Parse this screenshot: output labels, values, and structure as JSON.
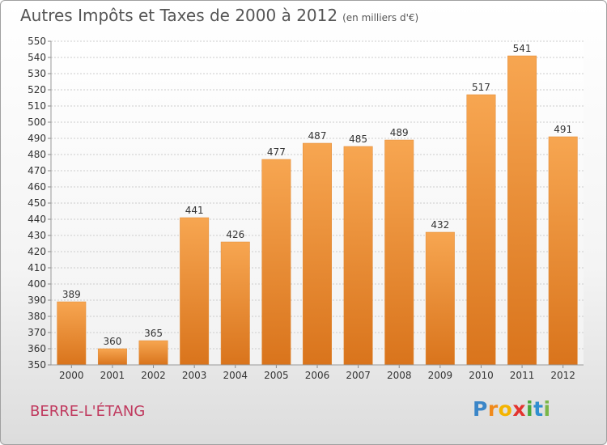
{
  "header": {
    "title": "Autres Impôts et Taxes de 2000 à 2012",
    "subtitle": "(en milliers d'€)"
  },
  "footer": {
    "commune": "BERRE-L'ÉTANG",
    "logo": [
      "P",
      "r",
      "o",
      "x",
      "i",
      "t",
      "i"
    ]
  },
  "colors": {
    "bar_top": "#f7a651",
    "bar_bottom": "#d9741c",
    "grid": "#cccccc"
  },
  "chart_data": {
    "type": "bar",
    "title": "Autres Impôts et Taxes de 2000 à 2012",
    "subtitle": "(en milliers d'€)",
    "categories": [
      "2000",
      "2001",
      "2002",
      "2003",
      "2004",
      "2005",
      "2006",
      "2007",
      "2008",
      "2009",
      "2010",
      "2011",
      "2012"
    ],
    "values": [
      389,
      360,
      365,
      441,
      426,
      477,
      487,
      485,
      489,
      432,
      517,
      541,
      491
    ],
    "ylim": [
      350,
      550
    ],
    "ytick_step": 10,
    "grid": true,
    "xlabel": "",
    "ylabel": ""
  }
}
